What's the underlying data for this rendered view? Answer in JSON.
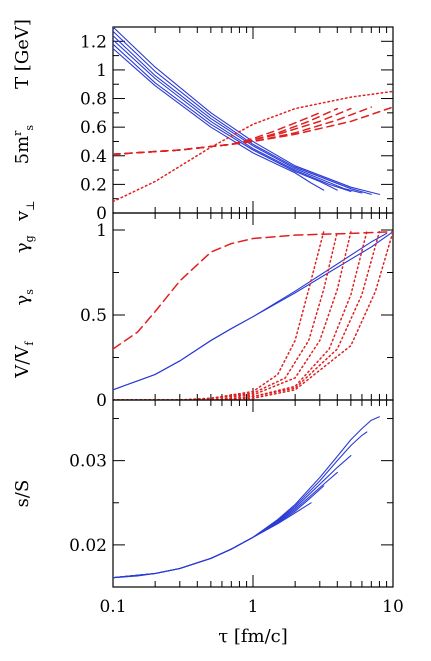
{
  "chart_data": [
    {
      "type": "line",
      "panel": "top",
      "xscale": "log",
      "xlim": [
        0.1,
        10
      ],
      "ylim": [
        0,
        1.3
      ],
      "ylabel": "v⊥   5mʳs   T [GeV]",
      "ylabel_parts": {
        "v": "v",
        "v_sub": "⊥",
        "m": "5m",
        "m_sup": "r",
        "m_sub": "s",
        "t": "T [GeV]"
      },
      "yticks": [
        0,
        0.2,
        0.4,
        0.6,
        0.8,
        1,
        1.2
      ],
      "ytick_labels": [
        "0",
        "0.2",
        "0.4",
        "0.6",
        "0.8",
        "1",
        "1.2"
      ],
      "series": [
        {
          "color": "#2a3bd6",
          "style": "solid",
          "x": [
            0.1,
            0.2,
            0.5,
            1,
            2,
            5,
            8
          ],
          "y": [
            1.3,
            1.02,
            0.7,
            0.5,
            0.33,
            0.18,
            0.13
          ]
        },
        {
          "color": "#2a3bd6",
          "style": "solid",
          "x": [
            0.1,
            0.2,
            0.5,
            1,
            2,
            5,
            7
          ],
          "y": [
            1.27,
            0.99,
            0.68,
            0.48,
            0.32,
            0.17,
            0.13
          ]
        },
        {
          "color": "#2a3bd6",
          "style": "solid",
          "x": [
            0.1,
            0.2,
            0.5,
            1,
            2,
            4.5,
            6
          ],
          "y": [
            1.24,
            0.96,
            0.66,
            0.47,
            0.31,
            0.17,
            0.14
          ]
        },
        {
          "color": "#2a3bd6",
          "style": "solid",
          "x": [
            0.1,
            0.2,
            0.5,
            1,
            2,
            3.5,
            5
          ],
          "y": [
            1.21,
            0.94,
            0.64,
            0.45,
            0.3,
            0.2,
            0.15
          ]
        },
        {
          "color": "#2a3bd6",
          "style": "solid",
          "x": [
            0.1,
            0.2,
            0.5,
            1,
            2,
            3,
            4
          ],
          "y": [
            1.18,
            0.91,
            0.62,
            0.44,
            0.29,
            0.22,
            0.16
          ]
        },
        {
          "color": "#2a3bd6",
          "style": "solid",
          "x": [
            0.1,
            0.2,
            0.5,
            1,
            2,
            2.6,
            3.2
          ],
          "y": [
            1.15,
            0.89,
            0.6,
            0.42,
            0.28,
            0.21,
            0.16
          ]
        },
        {
          "color": "#e02020",
          "style": "dotted",
          "x": [
            0.1,
            0.2,
            0.5,
            1,
            2,
            5,
            10
          ],
          "y": [
            0.08,
            0.22,
            0.46,
            0.62,
            0.73,
            0.81,
            0.85
          ]
        },
        {
          "color": "#e02020",
          "style": "dashed",
          "x": [
            0.1,
            0.3,
            0.7,
            1.0,
            1.4,
            2.0,
            3.0
          ],
          "y": [
            0.41,
            0.44,
            0.48,
            0.52,
            0.57,
            0.63,
            0.7
          ]
        },
        {
          "color": "#e02020",
          "style": "dashed",
          "x": [
            0.1,
            0.3,
            0.7,
            1.0,
            1.5,
            2.5,
            4.0
          ],
          "y": [
            0.41,
            0.44,
            0.48,
            0.51,
            0.56,
            0.64,
            0.73
          ]
        },
        {
          "color": "#e02020",
          "style": "dashed",
          "x": [
            0.1,
            0.3,
            0.7,
            1.0,
            1.5,
            3.0,
            5.0
          ],
          "y": [
            0.41,
            0.44,
            0.48,
            0.51,
            0.55,
            0.64,
            0.73
          ]
        },
        {
          "color": "#e02020",
          "style": "dashed",
          "x": [
            0.1,
            0.3,
            0.7,
            1.0,
            2.0,
            4.0,
            7.0
          ],
          "y": [
            0.41,
            0.44,
            0.48,
            0.5,
            0.56,
            0.65,
            0.74
          ]
        },
        {
          "color": "#e02020",
          "style": "dashed",
          "x": [
            0.1,
            0.3,
            0.7,
            1.0,
            2.0,
            5.0,
            10.0
          ],
          "y": [
            0.41,
            0.44,
            0.48,
            0.5,
            0.55,
            0.64,
            0.74
          ]
        }
      ]
    },
    {
      "type": "line",
      "panel": "middle",
      "xscale": "log",
      "xlim": [
        0.1,
        10
      ],
      "ylim": [
        0,
        1.1
      ],
      "ylabel": "V/Vf   γs   γg",
      "ylabel_parts": {
        "v": "V/V",
        "v_sub": "f",
        "gs": "γ",
        "gs_sub": "s",
        "gg": "γ",
        "gg_sub": "g"
      },
      "yticks": [
        0,
        0.5,
        1
      ],
      "ytick_labels": [
        "0",
        "0.5",
        "1"
      ],
      "series": [
        {
          "color": "#e02020",
          "style": "dashed",
          "x": [
            0.1,
            0.15,
            0.2,
            0.3,
            0.5,
            0.7,
            1,
            2,
            5,
            10
          ],
          "y": [
            0.3,
            0.4,
            0.52,
            0.7,
            0.87,
            0.92,
            0.95,
            0.97,
            0.98,
            0.99
          ]
        },
        {
          "color": "#2a3bd6",
          "style": "solid",
          "x": [
            0.1,
            0.2,
            0.3,
            0.5,
            0.7,
            1,
            2,
            4,
            7,
            9
          ],
          "y": [
            0.06,
            0.15,
            0.23,
            0.35,
            0.42,
            0.49,
            0.64,
            0.8,
            0.93,
            0.98
          ]
        },
        {
          "color": "#2a3bd6",
          "style": "solid",
          "x": [
            0.1,
            0.2,
            0.3,
            0.5,
            0.7,
            1,
            2,
            4,
            7,
            10
          ],
          "y": [
            0.06,
            0.15,
            0.23,
            0.35,
            0.42,
            0.49,
            0.63,
            0.78,
            0.9,
            0.99
          ]
        },
        {
          "color": "#e02020",
          "style": "dotted",
          "x": [
            0.1,
            0.3,
            0.5,
            1,
            1.5,
            2,
            2.5,
            3.2
          ],
          "y": [
            0.0,
            0.0,
            0.01,
            0.05,
            0.15,
            0.35,
            0.65,
            0.99
          ]
        },
        {
          "color": "#e02020",
          "style": "dotted",
          "x": [
            0.1,
            0.3,
            0.5,
            1,
            1.7,
            2.5,
            3.2,
            4.0
          ],
          "y": [
            0.0,
            0.0,
            0.01,
            0.04,
            0.13,
            0.35,
            0.65,
            0.99
          ]
        },
        {
          "color": "#e02020",
          "style": "dotted",
          "x": [
            0.1,
            0.3,
            0.5,
            1,
            2,
            3,
            4,
            5
          ],
          "y": [
            0.0,
            0.0,
            0.01,
            0.03,
            0.13,
            0.35,
            0.65,
            0.99
          ]
        },
        {
          "color": "#e02020",
          "style": "dotted",
          "x": [
            0.1,
            0.3,
            0.5,
            1,
            2,
            3.5,
            5,
            6.5
          ],
          "y": [
            0.0,
            0.0,
            0.0,
            0.02,
            0.08,
            0.3,
            0.62,
            0.99
          ]
        },
        {
          "color": "#e02020",
          "style": "dotted",
          "x": [
            0.1,
            0.3,
            0.5,
            1,
            2,
            4,
            6,
            8
          ],
          "y": [
            0.0,
            0.0,
            0.0,
            0.02,
            0.07,
            0.3,
            0.62,
            0.99
          ]
        },
        {
          "color": "#e02020",
          "style": "dotted",
          "x": [
            0.1,
            0.3,
            0.5,
            1,
            2,
            5,
            7.5,
            10
          ],
          "y": [
            0.0,
            0.0,
            0.0,
            0.01,
            0.06,
            0.32,
            0.64,
            0.99
          ]
        }
      ]
    },
    {
      "type": "line",
      "panel": "bottom",
      "xscale": "log",
      "xlim": [
        0.1,
        10
      ],
      "ylim": [
        0.015,
        0.0372
      ],
      "ylabel": "s/S",
      "xlabel": "τ [fm/c]",
      "xticks": [
        0.1,
        1,
        10
      ],
      "xtick_labels": [
        "0.1",
        "1",
        "10"
      ],
      "yticks": [
        0.02,
        0.03
      ],
      "ytick_labels": [
        "0.02",
        "0.03"
      ],
      "series": [
        {
          "color": "#2a3bd6",
          "style": "solid",
          "x": [
            0.1,
            0.15,
            0.2,
            0.3,
            0.5,
            0.7,
            1,
            1.5,
            2,
            3,
            4,
            5,
            6,
            7,
            8
          ],
          "y": [
            0.0161,
            0.0163,
            0.0166,
            0.0172,
            0.0184,
            0.0195,
            0.0209,
            0.023,
            0.0248,
            0.028,
            0.0305,
            0.0325,
            0.0338,
            0.0348,
            0.0352
          ]
        },
        {
          "color": "#2a3bd6",
          "style": "solid",
          "x": [
            0.1,
            0.2,
            0.3,
            0.5,
            0.7,
            1,
            1.5,
            2,
            3,
            4,
            5,
            6,
            6.5
          ],
          "y": [
            0.0161,
            0.0166,
            0.0172,
            0.0184,
            0.0195,
            0.0209,
            0.0229,
            0.0246,
            0.0276,
            0.03,
            0.0318,
            0.033,
            0.0334
          ]
        },
        {
          "color": "#2a3bd6",
          "style": "solid",
          "x": [
            0.1,
            0.2,
            0.3,
            0.5,
            0.7,
            1,
            1.5,
            2,
            3,
            4,
            5
          ],
          "y": [
            0.0161,
            0.0166,
            0.0172,
            0.0184,
            0.0195,
            0.0209,
            0.0228,
            0.0244,
            0.0272,
            0.0292,
            0.0306
          ]
        },
        {
          "color": "#2a3bd6",
          "style": "solid",
          "x": [
            0.1,
            0.2,
            0.3,
            0.5,
            0.7,
            1,
            1.5,
            2,
            3,
            4
          ],
          "y": [
            0.0161,
            0.0166,
            0.0172,
            0.0184,
            0.0195,
            0.0209,
            0.0227,
            0.0242,
            0.0268,
            0.0286
          ]
        },
        {
          "color": "#2a3bd6",
          "style": "solid",
          "x": [
            0.1,
            0.2,
            0.3,
            0.5,
            0.7,
            1,
            1.5,
            2,
            2.5,
            3.2
          ],
          "y": [
            0.0161,
            0.0166,
            0.0172,
            0.0184,
            0.0195,
            0.0209,
            0.0226,
            0.024,
            0.0254,
            0.027
          ]
        },
        {
          "color": "#2a3bd6",
          "style": "solid",
          "x": [
            0.1,
            0.2,
            0.3,
            0.5,
            0.7,
            1,
            1.5,
            2,
            2.6
          ],
          "y": [
            0.0161,
            0.0166,
            0.0172,
            0.0184,
            0.0195,
            0.0209,
            0.0225,
            0.0238,
            0.025
          ]
        }
      ]
    }
  ]
}
